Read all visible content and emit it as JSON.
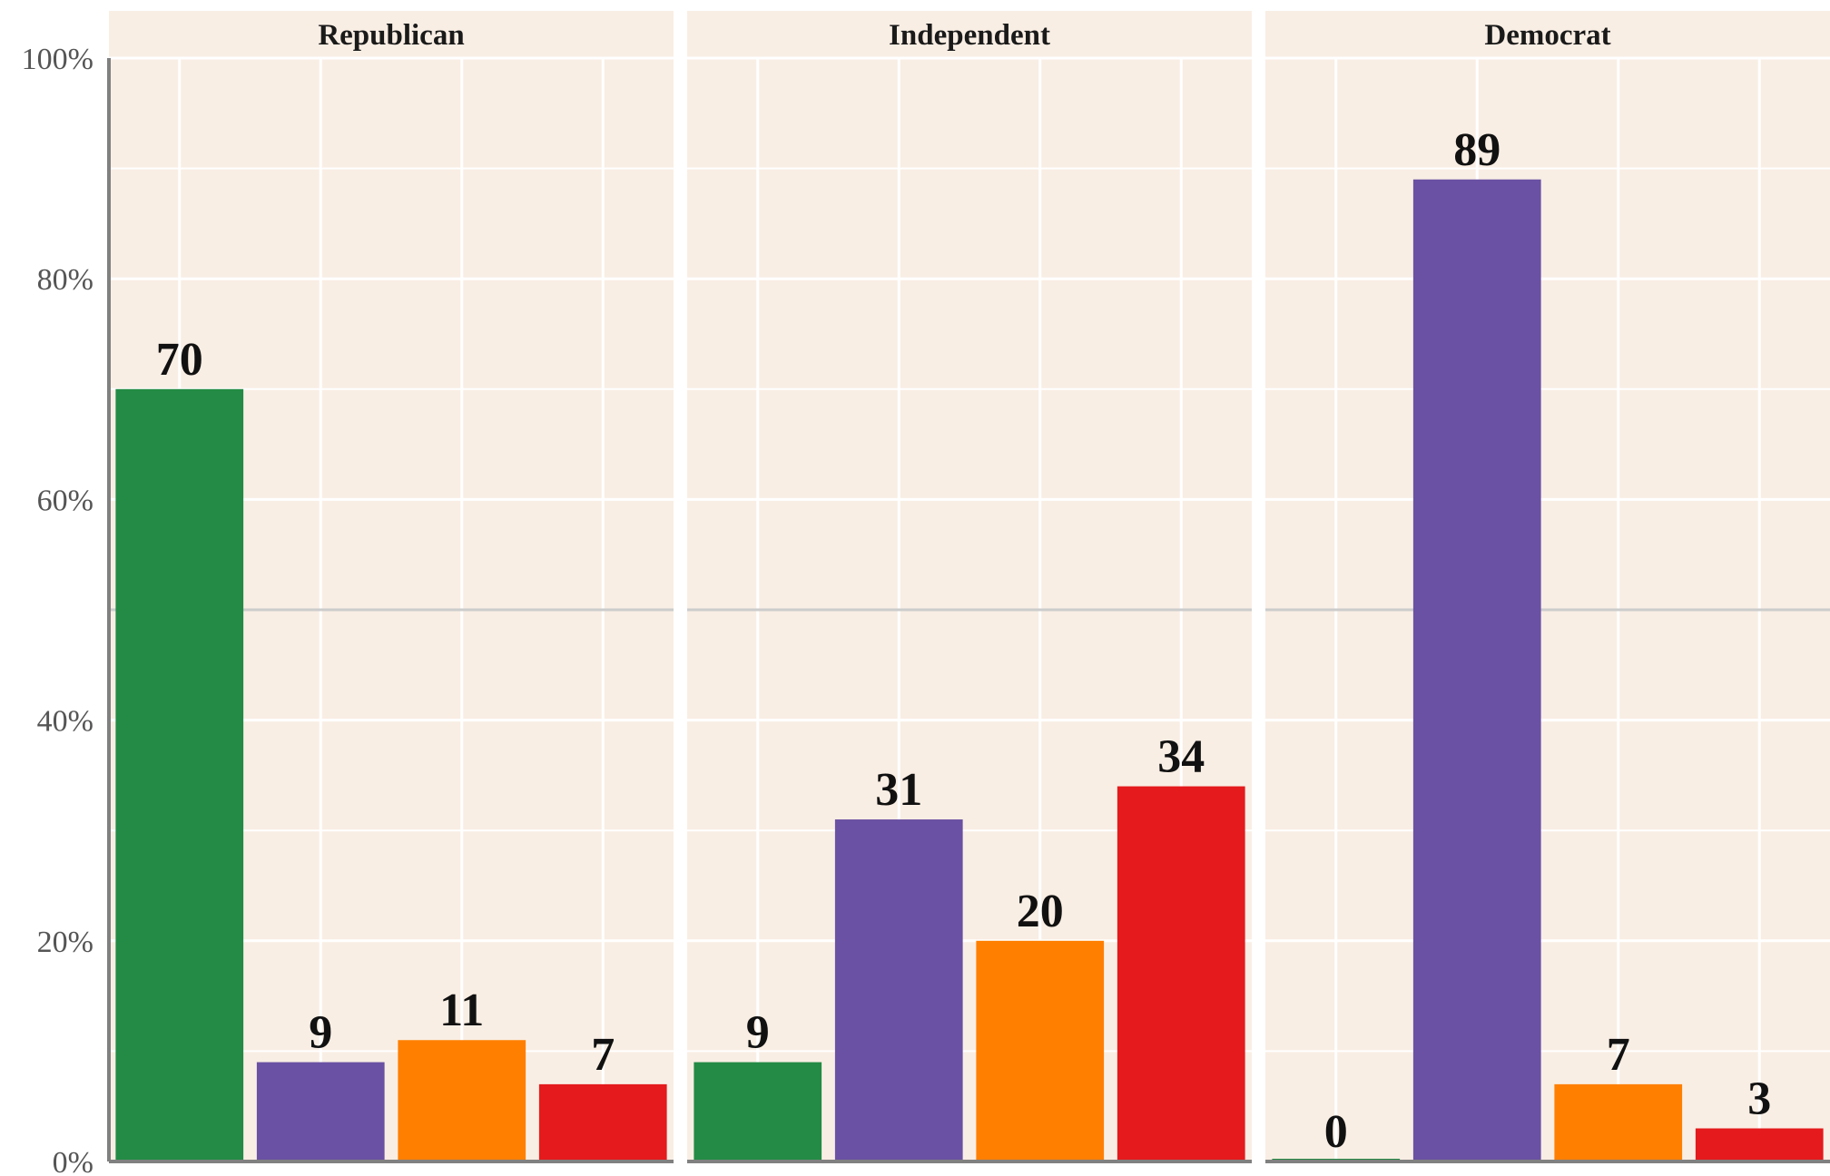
{
  "chart_data": {
    "type": "bar",
    "facets": [
      "Republican",
      "Independent",
      "Democrat"
    ],
    "series": [
      {
        "color": "#238b45",
        "values": [
          70,
          9,
          0
        ]
      },
      {
        "color": "#6a51a3",
        "values": [
          9,
          31,
          89
        ]
      },
      {
        "color": "#ff7f00",
        "values": [
          11,
          20,
          7
        ]
      },
      {
        "color": "#e41a1c",
        "values": [
          7,
          34,
          3
        ]
      }
    ],
    "data_labels": [
      [
        "70",
        "9",
        "11",
        "7"
      ],
      [
        "9",
        "31",
        "20",
        "34"
      ],
      [
        "0",
        "89",
        "7",
        "3"
      ]
    ],
    "ylim": [
      0,
      100
    ],
    "yticks": [
      0,
      20,
      40,
      60,
      80,
      100
    ],
    "ytick_labels": [
      "0%",
      "20%",
      "40%",
      "60%",
      "80%",
      "100%"
    ],
    "reference_line": 50,
    "grid": true,
    "legend": "none",
    "colors": {
      "panel_background": "#f9eee4",
      "gridline": "#ffffff",
      "reference_line": "#cccccc",
      "axis": "#808080"
    }
  }
}
